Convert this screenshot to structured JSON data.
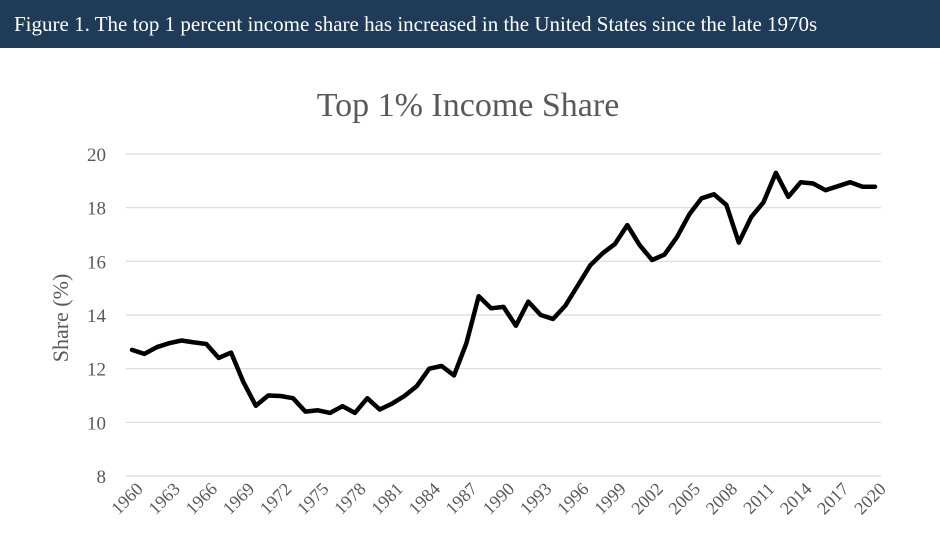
{
  "figure": {
    "caption": "Figure 1. The top 1 percent income share has increased in the United States since the late 1970s"
  },
  "chart_data": {
    "type": "line",
    "title": "Top 1% Income Share",
    "xlabel": "",
    "ylabel": "Share (%)",
    "ylim": [
      8,
      20
    ],
    "yticks": [
      8,
      10,
      12,
      14,
      16,
      18,
      20
    ],
    "xticks": [
      "1960",
      "1963",
      "1966",
      "1969",
      "1972",
      "1975",
      "1978",
      "1981",
      "1984",
      "1987",
      "1990",
      "1993",
      "1996",
      "1999",
      "2002",
      "2005",
      "2008",
      "2011",
      "2014",
      "2017",
      "2020"
    ],
    "grid": "horizontal",
    "colors": {
      "line": "#000000",
      "grid": "#d9d9d9",
      "text": "#595959",
      "banner": "#1f3b57"
    },
    "series": [
      {
        "x": [
          1960,
          1961,
          1962,
          1963,
          1964,
          1965,
          1966,
          1967,
          1968,
          1969,
          1970,
          1971,
          1972,
          1973,
          1974,
          1975,
          1976,
          1977,
          1978,
          1979,
          1980,
          1981,
          1982,
          1983,
          1984,
          1985,
          1986,
          1987,
          1988,
          1989,
          1990,
          1991,
          1992,
          1993,
          1994,
          1995,
          1996,
          1997,
          1998,
          1999,
          2000,
          2001,
          2002,
          2003,
          2004,
          2005,
          2006,
          2007,
          2008,
          2009,
          2010,
          2011,
          2012,
          2013,
          2014,
          2015,
          2016,
          2017,
          2018,
          2019,
          2020
        ],
        "values": [
          12.7,
          12.55,
          12.8,
          12.95,
          13.05,
          12.98,
          12.92,
          12.4,
          12.6,
          11.5,
          10.62,
          11.0,
          10.98,
          10.9,
          10.4,
          10.45,
          10.35,
          10.6,
          10.35,
          10.9,
          10.48,
          10.7,
          10.98,
          11.35,
          12.0,
          12.1,
          11.75,
          12.95,
          14.7,
          14.25,
          14.3,
          13.6,
          14.5,
          14.0,
          13.85,
          14.35,
          15.1,
          15.85,
          16.3,
          16.65,
          17.35,
          16.6,
          16.05,
          16.25,
          16.9,
          17.75,
          18.35,
          18.5,
          18.1,
          16.7,
          17.65,
          18.2,
          19.3,
          18.4,
          18.95,
          18.9,
          18.65,
          18.8,
          18.95,
          18.78,
          18.78
        ]
      }
    ]
  }
}
